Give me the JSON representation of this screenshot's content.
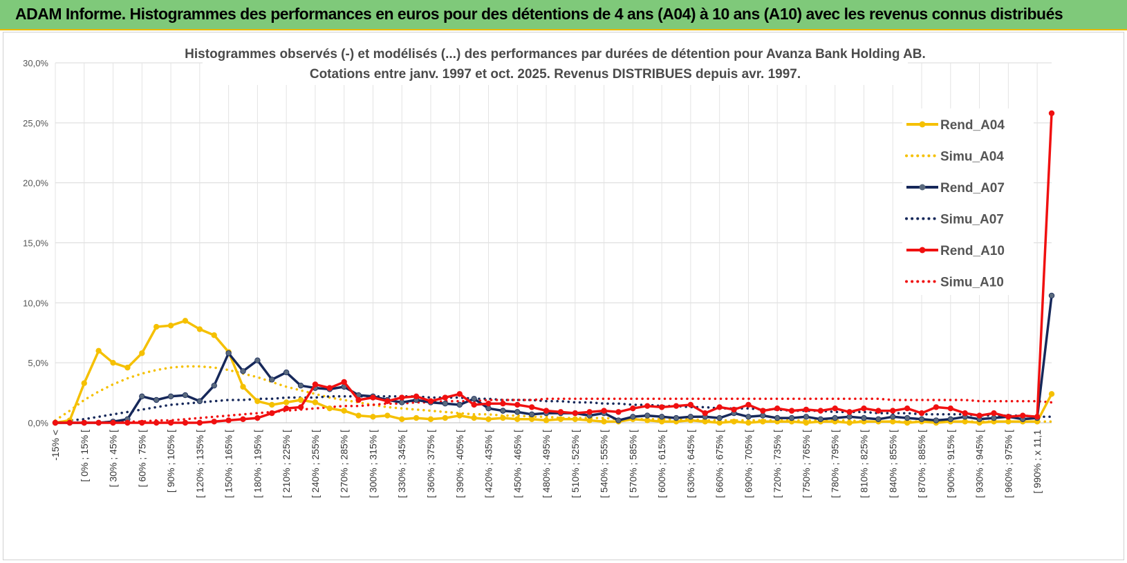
{
  "banner": {
    "title": "ADAM Informe. Histogrammes des performances en euros pour des détentions de 4 ans (A04) à 10 ans (A10) avec les revenus connus distribués"
  },
  "colors": {
    "banner_bg": "#7fc97a",
    "a04": "#f5c000",
    "a07": "#16285a",
    "a07_marker": "#5a6a7e",
    "a10": "#f01010"
  },
  "chart_data": {
    "type": "line",
    "title_line1": "Histogrammes observés (-) et modélisés (...) des performances par durées de détention pour Avanza Bank Holding AB.",
    "title_line2": "Cotations entre janv. 1997 et oct. 2025. Revenus DISTRIBUES depuis avr. 1997.",
    "ylim": [
      0,
      30
    ],
    "yticks": [
      "0,0%",
      "5,0%",
      "10,0%",
      "15,0%",
      "20,0%",
      "25,0%",
      "30,0%"
    ],
    "x_labels": [
      "-15% <",
      "[ 0% ; 15% [",
      "[ 30% ; 45% [",
      "[ 60% ; 75% [",
      "[ 90% ; 105% [",
      "[ 120% ; 135% [",
      "[ 150% ; 165% [",
      "[ 180% ; 195% [",
      "[ 210% ; 225% [",
      "[ 240% ; 255% [",
      "[ 270% ; 285% [",
      "[ 300% ; 315% [",
      "[ 330% ; 345% [",
      "[ 360% ; 375% [",
      "[ 390% ; 405% [",
      "[ 420% ; 435% [",
      "[ 450% ; 465% [",
      "[ 480% ; 495% [",
      "[ 510% ; 525% [",
      "[ 540% ; 555% [",
      "[ 570% ; 585% [",
      "[ 600% ; 615% [",
      "[ 630% ; 645% [",
      "[ 660% ; 675% [",
      "[ 690% ; 705% [",
      "[ 720% ; 735% [",
      "[ 750% ; 765% [",
      "[ 780% ; 795% [",
      "[ 810% ; 825% [",
      "[ 840% ; 855% [",
      "[ 870% ; 885% [",
      "[ 900% ; 915% [",
      "[ 930% ; 945% [",
      "[ 960% ; 975% [",
      "[ 990% ; x 11,1"
    ],
    "n_points": 70,
    "series": [
      {
        "name": "Rend_A04",
        "style": "solid",
        "color_key": "a04",
        "values": [
          0.0,
          0.2,
          3.3,
          6.0,
          5.0,
          4.6,
          5.8,
          8.0,
          8.1,
          8.5,
          7.8,
          7.3,
          5.9,
          3.0,
          1.8,
          1.5,
          1.7,
          1.9,
          1.7,
          1.2,
          1.0,
          0.6,
          0.5,
          0.6,
          0.3,
          0.4,
          0.3,
          0.4,
          0.6,
          0.4,
          0.3,
          0.4,
          0.3,
          0.3,
          0.2,
          0.3,
          0.3,
          0.2,
          0.1,
          0.1,
          0.3,
          0.2,
          0.1,
          0.1,
          0.2,
          0.1,
          0.0,
          0.1,
          0.0,
          0.1,
          0.1,
          0.1,
          0.0,
          0.1,
          0.1,
          0.0,
          0.1,
          0.1,
          0.1,
          0.0,
          0.1,
          0.0,
          0.1,
          0.1,
          0.0,
          0.1,
          0.1,
          0.1,
          0.1,
          2.4
        ]
      },
      {
        "name": "Simu_A04",
        "style": "dotted",
        "color_key": "a04",
        "values": [
          0.2,
          1.0,
          1.9,
          2.6,
          3.2,
          3.7,
          4.1,
          4.4,
          4.6,
          4.7,
          4.7,
          4.6,
          4.4,
          4.1,
          3.8,
          3.4,
          3.0,
          2.7,
          2.4,
          2.1,
          1.9,
          1.7,
          1.5,
          1.3,
          1.2,
          1.1,
          1.0,
          0.9,
          0.8,
          0.7,
          0.7,
          0.6,
          0.6,
          0.5,
          0.5,
          0.4,
          0.4,
          0.4,
          0.4,
          0.3,
          0.3,
          0.3,
          0.3,
          0.3,
          0.3,
          0.2,
          0.2,
          0.2,
          0.2,
          0.2,
          0.2,
          0.2,
          0.2,
          0.2,
          0.2,
          0.2,
          0.1,
          0.1,
          0.1,
          0.1,
          0.1,
          0.1,
          0.1,
          0.1,
          0.1,
          0.1,
          0.1,
          0.1,
          0.1,
          0.1
        ]
      },
      {
        "name": "Rend_A07",
        "style": "solid",
        "color_key": "a07",
        "values": [
          0.0,
          0.0,
          0.0,
          0.0,
          0.1,
          0.3,
          2.2,
          1.9,
          2.2,
          2.3,
          1.8,
          3.1,
          5.8,
          4.3,
          5.2,
          3.6,
          4.2,
          3.1,
          2.9,
          2.8,
          3.0,
          2.3,
          2.2,
          1.9,
          1.7,
          1.9,
          1.7,
          1.6,
          1.5,
          2.0,
          1.2,
          1.0,
          0.9,
          0.7,
          0.8,
          0.8,
          0.8,
          0.6,
          0.8,
          0.2,
          0.5,
          0.6,
          0.5,
          0.4,
          0.5,
          0.5,
          0.4,
          0.8,
          0.5,
          0.6,
          0.4,
          0.4,
          0.5,
          0.3,
          0.4,
          0.5,
          0.4,
          0.3,
          0.5,
          0.4,
          0.3,
          0.2,
          0.3,
          0.5,
          0.3,
          0.4,
          0.5,
          0.3,
          0.4,
          10.6
        ]
      },
      {
        "name": "Simu_A07",
        "style": "dotted",
        "color_key": "a07",
        "values": [
          0.0,
          0.2,
          0.3,
          0.5,
          0.7,
          0.9,
          1.1,
          1.3,
          1.5,
          1.6,
          1.7,
          1.8,
          1.9,
          1.9,
          2.0,
          2.0,
          2.1,
          2.1,
          2.1,
          2.2,
          2.2,
          2.2,
          2.2,
          2.2,
          2.2,
          2.2,
          2.1,
          2.1,
          2.1,
          2.0,
          2.0,
          1.9,
          1.9,
          1.9,
          1.8,
          1.8,
          1.7,
          1.7,
          1.6,
          1.6,
          1.5,
          1.5,
          1.4,
          1.4,
          1.3,
          1.3,
          1.2,
          1.2,
          1.2,
          1.1,
          1.1,
          1.0,
          1.0,
          1.0,
          0.9,
          0.9,
          0.9,
          0.8,
          0.8,
          0.8,
          0.7,
          0.7,
          0.7,
          0.7,
          0.6,
          0.6,
          0.6,
          0.6,
          0.5,
          0.5
        ]
      },
      {
        "name": "Rend_A10",
        "style": "solid",
        "color_key": "a10",
        "values": [
          0.0,
          0.0,
          0.0,
          0.0,
          0.0,
          0.0,
          0.0,
          0.0,
          0.0,
          0.0,
          0.0,
          0.1,
          0.2,
          0.3,
          0.4,
          0.8,
          1.2,
          1.3,
          3.2,
          2.9,
          3.4,
          1.9,
          2.1,
          1.8,
          2.1,
          2.2,
          1.8,
          2.1,
          2.4,
          1.5,
          1.6,
          1.6,
          1.5,
          1.3,
          1.0,
          0.9,
          0.8,
          0.9,
          1.0,
          0.9,
          1.2,
          1.4,
          1.3,
          1.4,
          1.5,
          0.8,
          1.3,
          1.1,
          1.5,
          1.0,
          1.2,
          1.0,
          1.1,
          1.0,
          1.2,
          0.9,
          1.2,
          1.0,
          1.0,
          1.2,
          0.8,
          1.3,
          1.2,
          0.8,
          0.6,
          0.8,
          0.5,
          0.6,
          0.5,
          25.8
        ]
      },
      {
        "name": "Simu_A10",
        "style": "dotted",
        "color_key": "a10",
        "values": [
          0.0,
          0.0,
          0.0,
          0.0,
          0.1,
          0.1,
          0.1,
          0.2,
          0.2,
          0.3,
          0.4,
          0.5,
          0.6,
          0.7,
          0.8,
          0.9,
          1.0,
          1.1,
          1.2,
          1.3,
          1.4,
          1.4,
          1.5,
          1.6,
          1.6,
          1.7,
          1.7,
          1.8,
          1.8,
          1.8,
          1.9,
          1.9,
          1.9,
          1.9,
          2.0,
          2.0,
          2.0,
          2.0,
          2.0,
          2.0,
          2.0,
          2.0,
          2.0,
          2.0,
          2.0,
          2.0,
          2.0,
          2.0,
          2.0,
          2.0,
          2.0,
          2.0,
          2.0,
          2.0,
          2.0,
          2.0,
          2.0,
          2.0,
          1.9,
          1.9,
          1.9,
          1.9,
          1.9,
          1.9,
          1.8,
          1.8,
          1.8,
          1.8,
          1.8,
          1.7
        ]
      }
    ]
  }
}
